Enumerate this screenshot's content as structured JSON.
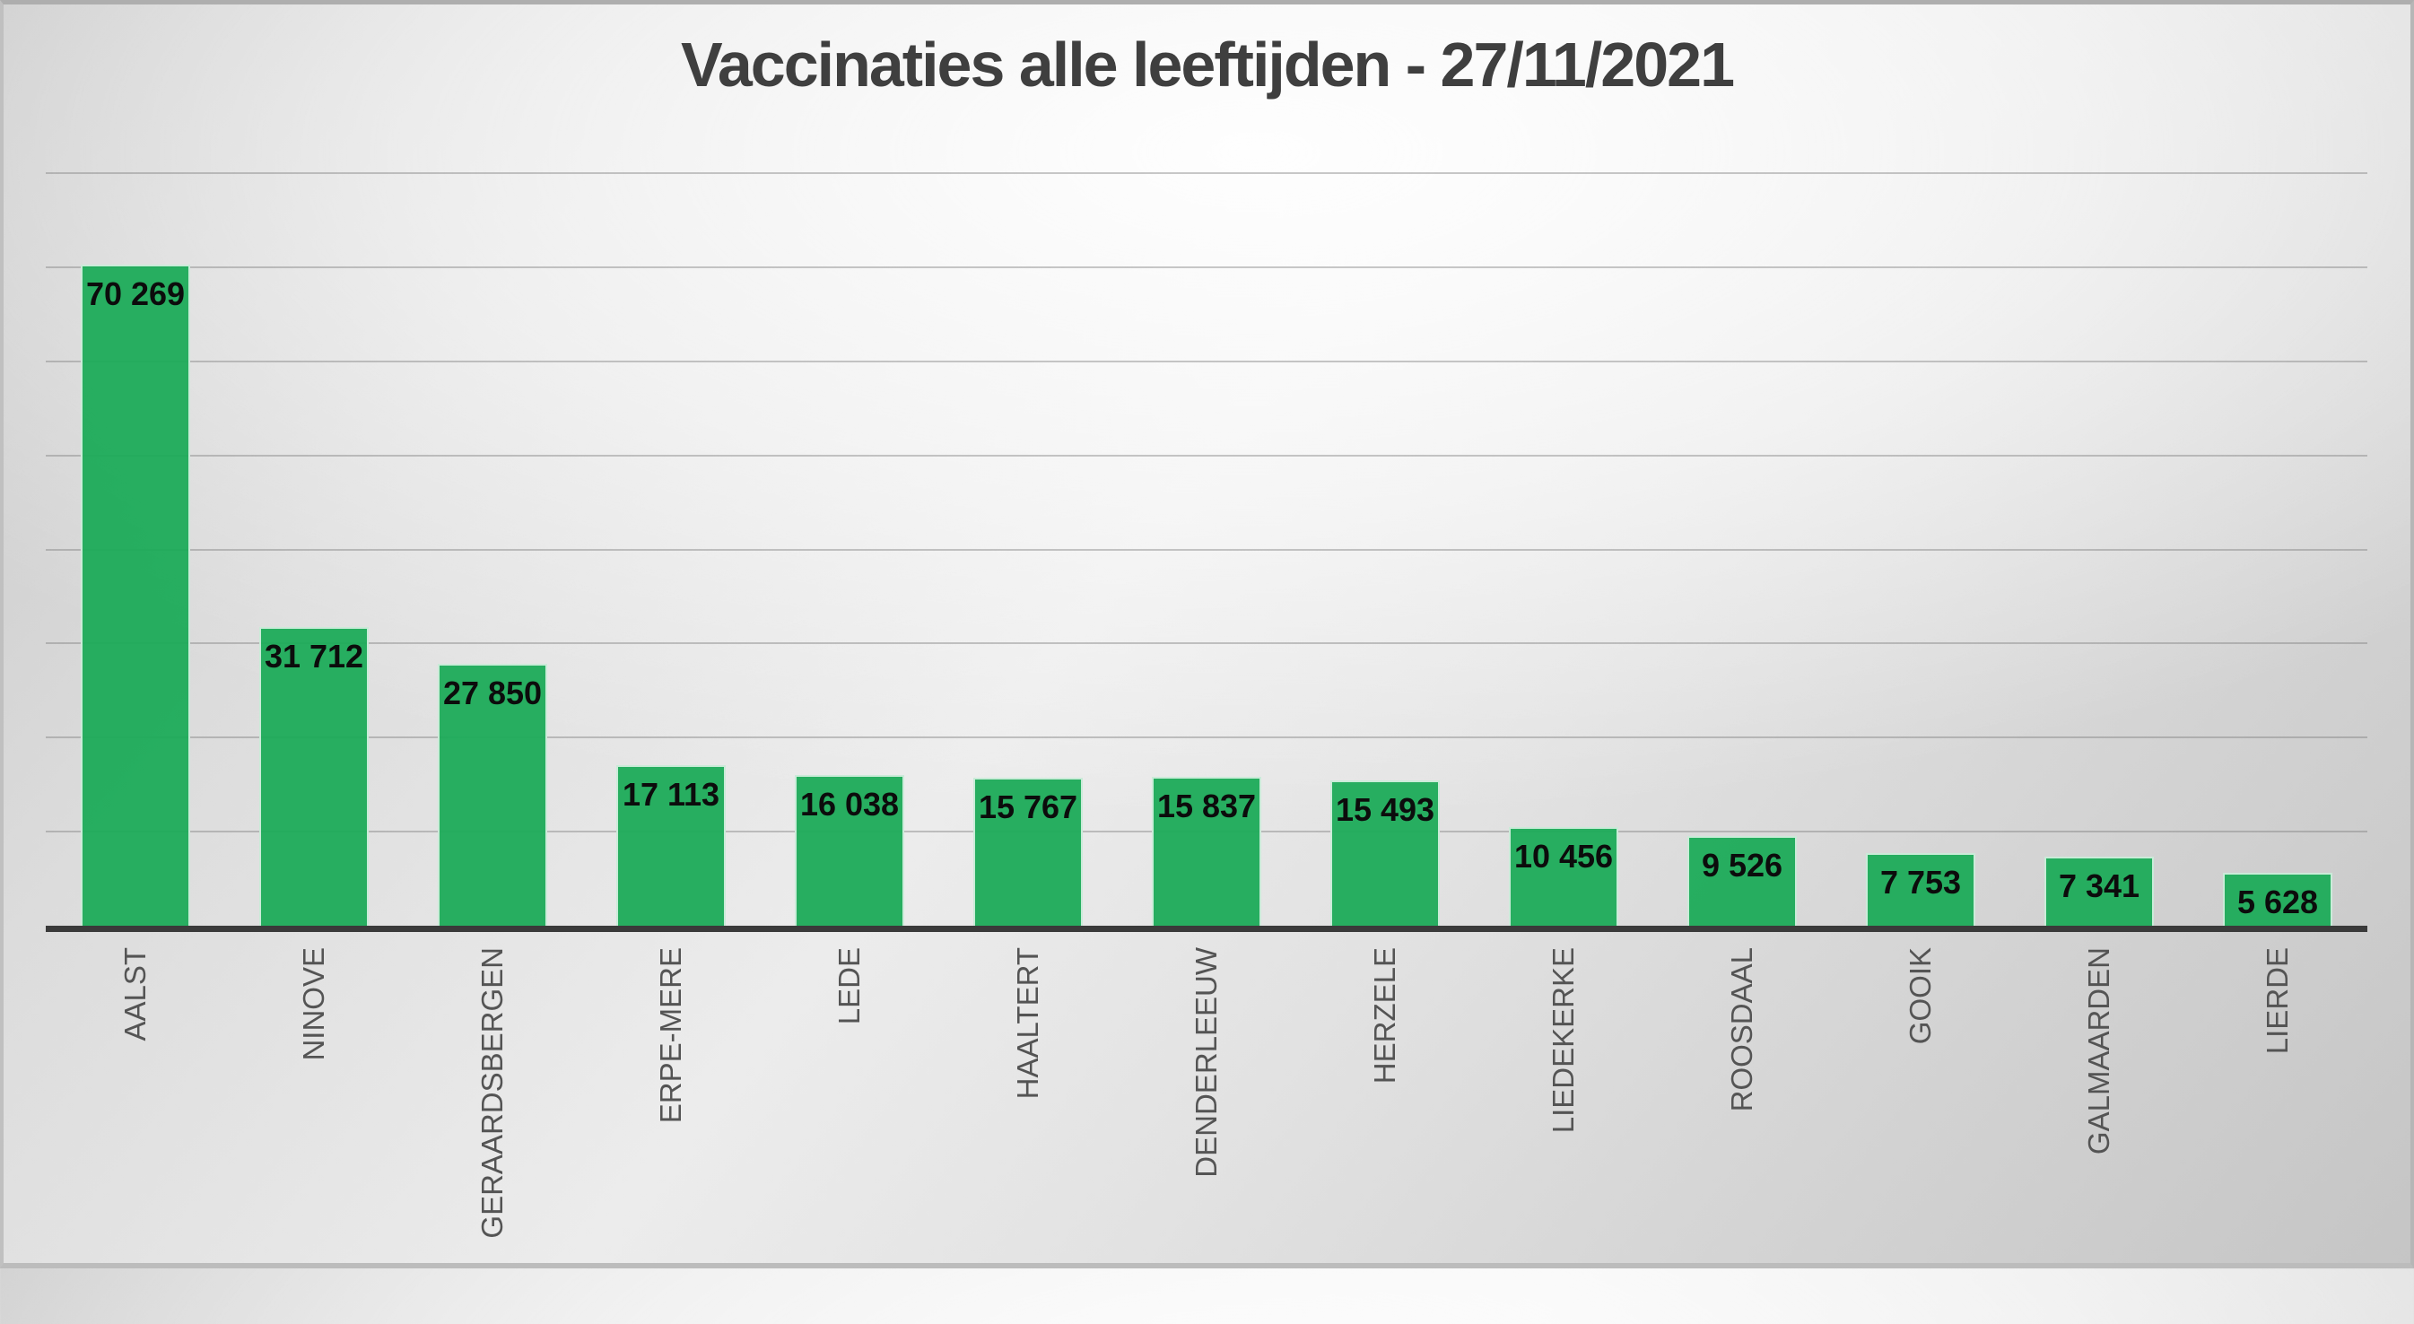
{
  "page": {
    "title": "Vaccinaties alle leeftijden - 27/11/2021"
  },
  "chart_data": {
    "type": "bar",
    "title": "Vaccinaties alle leeftijden - 27/11/2021",
    "categories": [
      "AALST",
      "NINOVE",
      "GERAARDSBERGEN",
      "ERPE-MERE",
      "LEDE",
      "HAALTERT",
      "DENDERLEEUW",
      "HERZELE",
      "LIEDEKERKE",
      "ROOSDAAL",
      "GOOIK",
      "GALMAARDEN",
      "LIERDE"
    ],
    "values": [
      70269,
      31712,
      27850,
      17113,
      16038,
      15767,
      15837,
      15493,
      10456,
      9526,
      7753,
      7341,
      5628
    ],
    "value_labels": [
      "70 269",
      "31 712",
      "27 850",
      "17 113",
      "16 038",
      "15 767",
      "15 837",
      "15 493",
      "10 456",
      "9 526",
      "7 753",
      "7 341",
      "5 628"
    ],
    "xlabel": "",
    "ylabel": "",
    "ylim": [
      0,
      80000
    ],
    "gridline_interval": 10000,
    "grid": true,
    "y_tick_labels_visible": false,
    "legend_position": "none",
    "data_label_position": "inside-end",
    "x_label_rotation_deg": -90,
    "colors": {
      "bar_fill": "#25b061",
      "bar_border": "#f2f8f4",
      "gridline": "#a9a9a9",
      "axis_line": "#3a3a3a",
      "title_text": "#3f3f3f",
      "category_text": "#545454",
      "data_label_text": "#0c0c0c",
      "background_center": "#f5f5f5",
      "background_corner": "#c6c6c6"
    }
  }
}
